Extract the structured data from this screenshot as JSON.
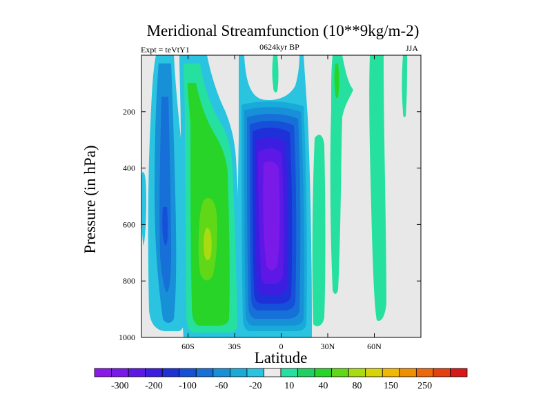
{
  "chart_data": {
    "type": "contour",
    "title": "Meridional Streamfunction (10**9kg/m-2)",
    "subtitle_left": "Expt = teVtY1",
    "subtitle_center": "0624kyr BP",
    "subtitle_right": "JJA",
    "xlabel": "Latitude",
    "ylabel": "Pressure (in hPa)",
    "xlim": [
      -90,
      90
    ],
    "ylim": [
      0,
      1000
    ],
    "y_inverted": true,
    "x_ticks": [
      {
        "value": -60,
        "label": "60S"
      },
      {
        "value": -30,
        "label": "30S"
      },
      {
        "value": 0,
        "label": "0"
      },
      {
        "value": 30,
        "label": "30N"
      },
      {
        "value": 60,
        "label": "60N"
      }
    ],
    "y_ticks": [
      {
        "value": 200,
        "label": "200"
      },
      {
        "value": 400,
        "label": "400"
      },
      {
        "value": 600,
        "label": "600"
      },
      {
        "value": 800,
        "label": "800"
      },
      {
        "value": 1000,
        "label": "1000"
      }
    ],
    "colorbar": {
      "colors": [
        "#8a1ae8",
        "#7a1ae8",
        "#5d18e6",
        "#3c1ee0",
        "#1e30d8",
        "#1650d8",
        "#1670d8",
        "#1890d8",
        "#18aad8",
        "#2ac4e0",
        "#ebebeb",
        "#26e0a0",
        "#20d060",
        "#28d428",
        "#60d818",
        "#a8dc10",
        "#d8d408",
        "#f0b800",
        "#f09000",
        "#ec6808",
        "#e44010",
        "#d81818"
      ],
      "labels": [
        "-300",
        "-200",
        "-100",
        "-60",
        "-20",
        "10",
        "40",
        "80",
        "150",
        "250"
      ]
    },
    "regions": [
      {
        "name": "southern-cell",
        "sign": "positive",
        "lat_range": [
          -65,
          -38
        ],
        "peak_value": 80,
        "peak_lat": -48,
        "peak_p": 650
      },
      {
        "name": "equatorial-cell",
        "sign": "negative",
        "lat_range": [
          -18,
          12
        ],
        "peak_value": -300,
        "peak_lat": -3,
        "peak_p": 500
      },
      {
        "name": "southern-polar-band",
        "sign": "negative",
        "lat_range": [
          -82,
          -60
        ],
        "peak_value": -100,
        "peak_lat": -74,
        "peak_p": 500
      },
      {
        "name": "northern-band-30n",
        "sign": "positive",
        "lat_range": [
          22,
          30
        ],
        "peak_value": 10
      },
      {
        "name": "northern-band-60n",
        "sign": "positive",
        "lat_range": [
          52,
          66
        ],
        "peak_value": 10
      }
    ]
  }
}
